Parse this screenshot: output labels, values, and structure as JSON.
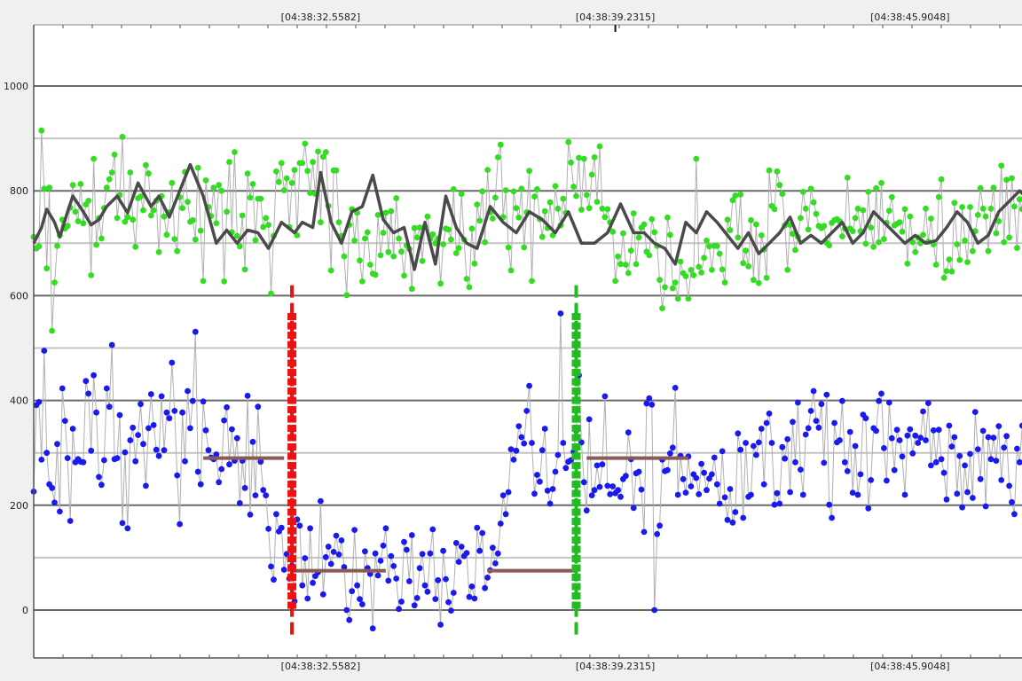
{
  "chart_data": {
    "type": "scatter",
    "title": "",
    "xlabel": "",
    "ylabel": "",
    "ylim": [
      -55,
      1105
    ],
    "xlim": [
      0,
      380
    ],
    "y_ticks": [
      0,
      200,
      400,
      600,
      800,
      1000
    ],
    "y_minor_gridlines": [
      100,
      300,
      500,
      700,
      900
    ],
    "x_tick_labels": [
      "[04:38:32.5582]",
      "[04:38:39.2315]",
      "[04:38:45.9048]"
    ],
    "grid": true,
    "legend": "none",
    "series": [
      {
        "role": "upper-raw",
        "marker_color": "#33dd22",
        "line_color": "#b0b0b0",
        "values": [
          712,
          690,
          694,
          915,
          804,
          652,
          806,
          533,
          625,
          695,
          715,
          745,
          728,
          733,
          768,
          811,
          760,
          742,
          813,
          738,
          774,
          781,
          639,
          861,
          697,
          748,
          709,
          767,
          806,
          822,
          835,
          869,
          748,
          792,
          903,
          741,
          750,
          835,
          745,
          693,
          786,
          789,
          763,
          849,
          833,
          753,
          763,
          781,
          683,
          790,
          751,
          716,
          759,
          815,
          708,
          685,
          788,
          767,
          836,
          779,
          741,
          744,
          707,
          844,
          724,
          628,
          820,
          769,
          752,
          806,
          738,
          811,
          800,
          627,
          760,
          855,
          721,
          874,
          714,
          694,
          753,
          650,
          833,
          787,
          813,
          706,
          785,
          785,
          731,
          748,
          735,
          604,
          714,
          837,
          817,
          853,
          801,
          824,
          731,
          815,
          840,
          715,
          853,
          853,
          890,
          838,
          796,
          855,
          794,
          875,
          740,
          865,
          874,
          771,
          648,
          839,
          839,
          740,
          714,
          675,
          601,
          735,
          765,
          705,
          758,
          667,
          627,
          709,
          721,
          659,
          642,
          640,
          754,
          677,
          720,
          758,
          683,
          761,
          675,
          786,
          709,
          684,
          638,
          696,
          689,
          613,
          729,
          711,
          730,
          666,
          732,
          751,
          708,
          717,
          700,
          709,
          623,
          698,
          728,
          726,
          707,
          803,
          681,
          691,
          794,
          707,
          632,
          616,
          728,
          661,
          774,
          743,
          799,
          702,
          840,
          759,
          747,
          787,
          864,
          888,
          750,
          801,
          692,
          648,
          799,
          767,
          749,
          804,
          692,
          759,
          838,
          628,
          789,
          803,
          746,
          712,
          761,
          729,
          778,
          715,
          809,
          766,
          734,
          785,
          758,
          893,
          854,
          808,
          790,
          863,
          764,
          861,
          792,
          767,
          831,
          864,
          779,
          885,
          766,
          750,
          765,
          740,
          722,
          628,
          675,
          660,
          719,
          659,
          643,
          686,
          757,
          660,
          711,
          730,
          736,
          684,
          677,
          746,
          721,
          695,
          630,
          576,
          616,
          749,
          716,
          614,
          625,
          594,
          665,
          643,
          637,
          594,
          649,
          639,
          861,
          655,
          644,
          672,
          705,
          694,
          649,
          695,
          695,
          680,
          650,
          625,
          745,
          725,
          782,
          791,
          711,
          793,
          662,
          686,
          656,
          744,
          630,
          736,
          624,
          715,
          688,
          634,
          839,
          771,
          765,
          837,
          811,
          794,
          734,
          649,
          735,
          718,
          687,
          712,
          748,
          798,
          766,
          726,
          804,
          778,
          756,
          733,
          729,
          733,
          701,
          696,
          739,
          744,
          746,
          742,
          713,
          728,
          825,
          728,
          723,
          748,
          766,
          723,
          763,
          699,
          798,
          730,
          693,
          805,
          702,
          815,
          708,
          739,
          762,
          788,
          734,
          737,
          740,
          722,
          765,
          661,
          751,
          702,
          683,
          711,
          700,
          716,
          766,
          703,
          747,
          698,
          659,
          788,
          822,
          634,
          647,
          669,
          646,
          777,
          698,
          668,
          769,
          705,
          664,
          769,
          685,
          723,
          754,
          805,
          766,
          751,
          685,
          766,
          806,
          719,
          742,
          848,
          702,
          821,
          711,
          824,
          770,
          691,
          784,
          765
        ]
      },
      {
        "role": "upper-smoothed",
        "line_color": "#4a4a4a",
        "x": [
          0,
          3,
          5,
          8,
          10,
          13,
          15,
          19,
          22,
          25,
          28,
          32,
          36,
          40,
          45,
          48,
          52,
          56,
          60,
          65,
          70,
          74,
          78,
          82,
          86,
          90,
          95,
          100,
          103,
          107,
          110,
          114,
          118,
          122,
          126,
          130,
          134,
          138,
          142,
          146,
          150,
          154,
          158,
          162,
          166,
          170,
          175,
          180,
          185,
          190,
          195,
          200,
          205,
          210,
          215,
          220,
          225,
          230,
          234,
          238,
          242,
          246,
          250,
          254,
          258,
          262,
          266,
          270,
          274,
          278,
          282,
          286,
          290,
          294,
          298,
          302,
          306,
          310,
          314,
          318,
          322,
          326,
          330,
          334,
          338,
          342,
          346,
          350,
          354,
          358,
          362,
          366,
          370,
          374,
          378,
          380
        ],
        "values": [
          700,
          730,
          765,
          740,
          712,
          760,
          790,
          760,
          735,
          745,
          770,
          790,
          758,
          815,
          770,
          790,
          750,
          800,
          850,
          790,
          700,
          725,
          700,
          725,
          720,
          690,
          740,
          720,
          740,
          730,
          835,
          740,
          700,
          760,
          770,
          830,
          745,
          720,
          730,
          650,
          740,
          660,
          790,
          730,
          700,
          690,
          770,
          740,
          720,
          760,
          745,
          720,
          760,
          700,
          700,
          720,
          775,
          720,
          720,
          700,
          690,
          660,
          740,
          720,
          760,
          740,
          715,
          690,
          720,
          680,
          700,
          720,
          750,
          700,
          715,
          700,
          720,
          740,
          700,
          720,
          760,
          740,
          720,
          700,
          715,
          700,
          705,
          730,
          760,
          740,
          700,
          715,
          760,
          780,
          800,
          790
        ]
      },
      {
        "role": "lower-raw",
        "marker_color": "#1a1aee",
        "line_color": "#b0b0b0",
        "values": [
          226,
          391,
          397,
          287,
          495,
          300,
          240,
          233,
          205,
          317,
          188,
          423,
          361,
          290,
          170,
          346,
          282,
          288,
          283,
          282,
          437,
          413,
          304,
          448,
          377,
          254,
          239,
          286,
          423,
          388,
          506,
          288,
          290,
          372,
          166,
          301,
          156,
          324,
          348,
          284,
          334,
          393,
          317,
          237,
          347,
          412,
          353,
          306,
          294,
          408,
          305,
          377,
          366,
          472,
          380,
          257,
          164,
          377,
          284,
          418,
          347,
          399,
          531,
          264,
          240,
          398,
          343,
          305,
          291,
          288,
          297,
          244,
          269,
          362,
          387,
          278,
          345,
          285,
          328,
          204,
          285,
          233,
          409,
          182,
          321,
          219,
          388,
          283,
          229,
          219,
          155,
          83,
          58,
          183,
          150,
          157,
          77,
          107,
          60,
          85,
          17,
          173,
          161,
          47,
          99,
          22,
          156,
          52,
          65,
          72,
          208,
          30,
          101,
          121,
          88,
          111,
          142,
          106,
          133,
          82,
          0,
          -19,
          36,
          153,
          47,
          21,
          11,
          112,
          80,
          69,
          -35,
          108,
          66,
          94,
          123,
          156,
          56,
          103,
          84,
          60,
          2,
          16,
          130,
          115,
          55,
          143,
          9,
          23,
          80,
          107,
          47,
          35,
          108,
          154,
          21,
          57,
          -28,
          113,
          59,
          15,
          -1,
          33,
          128,
          92,
          121,
          103,
          109,
          25,
          45,
          22,
          157,
          113,
          147,
          42,
          62,
          76,
          119,
          89,
          108,
          165,
          219,
          183,
          225,
          307,
          287,
          304,
          351,
          330,
          318,
          380,
          428,
          319,
          222,
          258,
          245,
          305,
          346,
          228,
          203,
          231,
          264,
          296,
          566,
          319,
          271,
          283,
          286,
          302,
          342,
          448,
          320,
          244,
          190,
          364,
          219,
          229,
          276,
          235,
          278,
          408,
          237,
          221,
          236,
          223,
          229,
          216,
          250,
          256,
          339,
          288,
          195,
          261,
          264,
          230,
          149,
          394,
          404,
          392,
          0,
          145,
          161,
          287,
          265,
          267,
          299,
          310,
          424,
          220,
          294,
          250,
          224,
          293,
          236,
          259,
          252,
          221,
          279,
          262,
          229,
          251,
          259,
          291,
          240,
          203,
          303,
          215,
          172,
          231,
          167,
          187,
          337,
          306,
          176,
          319,
          216,
          220,
          313,
          296,
          320,
          346,
          240,
          357,
          375,
          319,
          201,
          223,
          203,
          311,
          289,
          326,
          225,
          359,
          282,
          396,
          268,
          220,
          335,
          347,
          380,
          418,
          361,
          348,
          393,
          281,
          411,
          201,
          176,
          357,
          320,
          324,
          399,
          282,
          265,
          340,
          224,
          313,
          220,
          259,
          373,
          366,
          194,
          248,
          347,
          342,
          399,
          413,
          309,
          247,
          396,
          328,
          267,
          344,
          324,
          293,
          220,
          333,
          345,
          299,
          333,
          319,
          329,
          379,
          324,
          395,
          276,
          343,
          282,
          344,
          288,
          262,
          211,
          352,
          312,
          330,
          222,
          294,
          196,
          276,
          225,
          298,
          214,
          378,
          307,
          250,
          342,
          198,
          330,
          288,
          329,
          285,
          351,
          248,
          310,
          332,
          237,
          206,
          183,
          308,
          282,
          352
        ]
      },
      {
        "role": "segment-mean",
        "line_color": "#8b5a55",
        "segments": [
          {
            "x": [
              65,
              96
            ],
            "y": 290
          },
          {
            "x": [
              99,
              135
            ],
            "y": 75
          },
          {
            "x": [
              174,
              208
            ],
            "y": 75
          },
          {
            "x": [
              212,
              251
            ],
            "y": 290
          }
        ]
      }
    ],
    "markers": [
      {
        "role": "start-boundary",
        "x": 99,
        "color": "#ee1111",
        "y_range": [
          -55,
          620
        ]
      },
      {
        "role": "end-boundary",
        "x": 208,
        "color": "#22bb22",
        "y_range": [
          -55,
          620
        ]
      }
    ]
  }
}
